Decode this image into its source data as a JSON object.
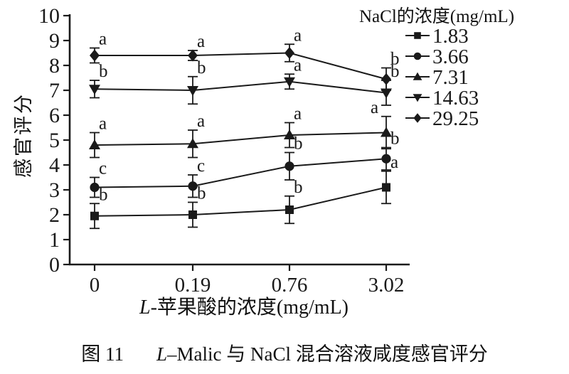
{
  "figure": {
    "caption_prefix": "图 11",
    "caption_italic": "L",
    "caption_rest": "–Malic 与 NaCl 混合溶液咸度感官评分"
  },
  "chart_data": {
    "type": "line",
    "x_scale": "categorical",
    "x_categories": [
      "0",
      "0.19",
      "0.76",
      "3.02"
    ],
    "xlabel_italic": "L",
    "xlabel_rest": "-苹果酸的浓度(mg/mL)",
    "ylabel": "感官评分",
    "ylim": [
      0,
      10
    ],
    "ytick_interval": 1,
    "grid": false,
    "legend_position": "top-right",
    "legend_title": "NaCl的浓度(mg/mL)",
    "color": "#1a1a1a",
    "series": [
      {
        "name": "1.83",
        "marker": "square",
        "values": [
          1.95,
          2.0,
          2.2,
          3.1
        ],
        "errors": [
          0.5,
          0.5,
          0.55,
          0.65
        ],
        "letters": [
          "b",
          "b",
          "b",
          "a"
        ]
      },
      {
        "name": "3.66",
        "marker": "circle",
        "values": [
          3.1,
          3.15,
          3.95,
          4.25
        ],
        "errors": [
          0.4,
          0.45,
          0.55,
          0.45
        ],
        "letters": [
          "c",
          "c",
          "b",
          "b"
        ]
      },
      {
        "name": "7.31",
        "marker": "triangle-up",
        "values": [
          4.8,
          4.85,
          5.2,
          5.3
        ],
        "errors": [
          0.5,
          0.55,
          0.5,
          0.65
        ],
        "letters": [
          "a",
          "a",
          "a",
          "a"
        ],
        "letter_dx": [
          6,
          6,
          6,
          -22
        ]
      },
      {
        "name": "14.63",
        "marker": "triangle-down",
        "values": [
          7.05,
          7.0,
          7.35,
          6.9
        ],
        "errors": [
          0.35,
          0.55,
          0.3,
          0.5
        ],
        "letters": [
          "b",
          "b",
          "a",
          "b"
        ]
      },
      {
        "name": "29.25",
        "marker": "diamond",
        "values": [
          8.4,
          8.4,
          8.5,
          7.45
        ],
        "errors": [
          0.3,
          0.2,
          0.35,
          0.45
        ],
        "letters": [
          "a",
          "a",
          "a",
          "b"
        ]
      }
    ]
  }
}
